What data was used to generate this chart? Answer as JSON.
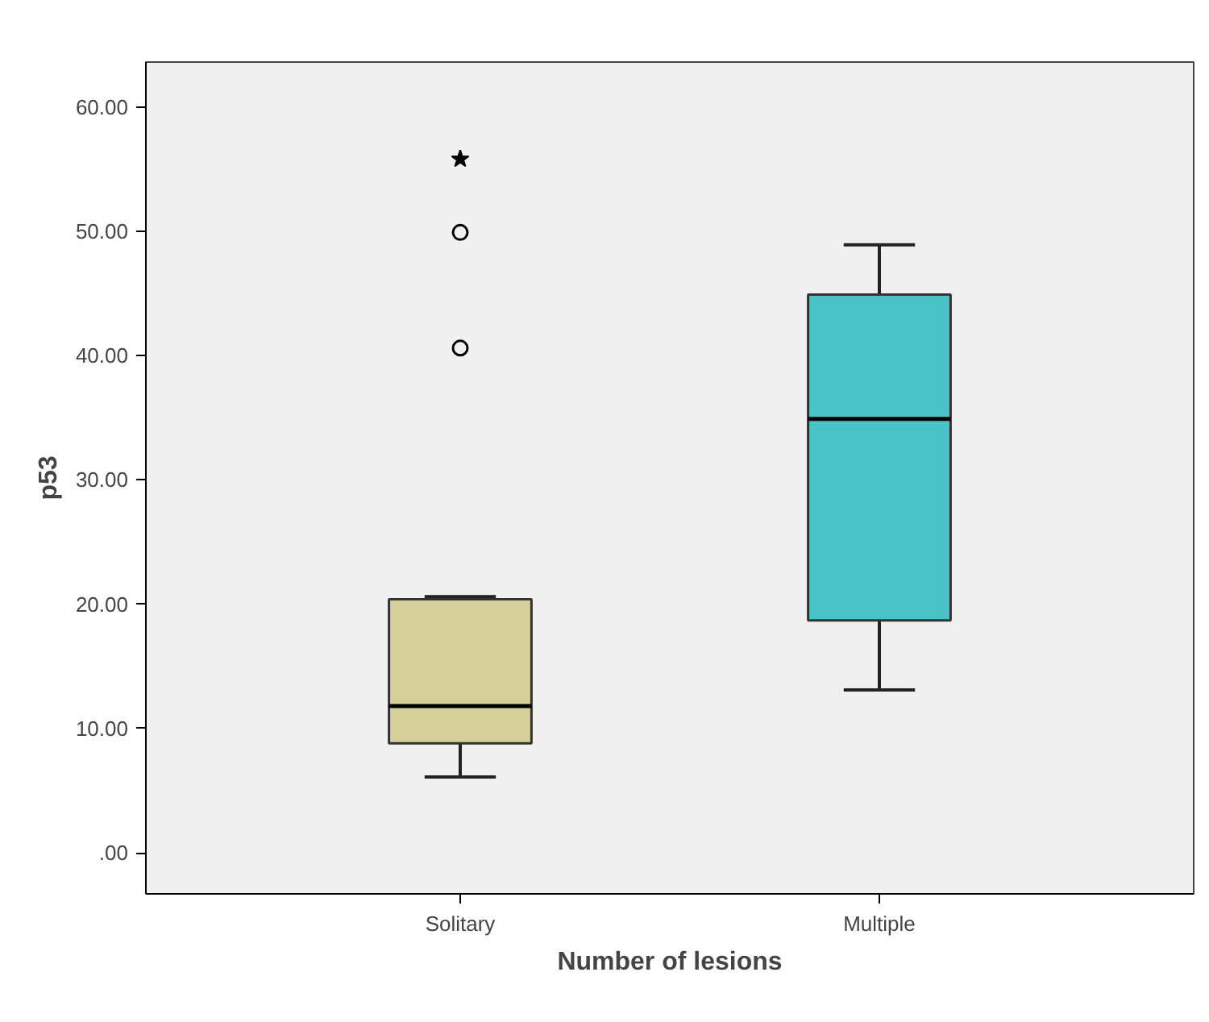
{
  "chart_data": {
    "type": "box",
    "xlabel": "Number of lesions",
    "ylabel": "p53",
    "categories": [
      "Solitary",
      "Multiple"
    ],
    "colors": [
      "#d5d09a",
      "#49c3c6"
    ],
    "boxes": [
      {
        "low": 6.1,
        "q1": 8.8,
        "median": 11.8,
        "q3": 20.4,
        "high": 20.6,
        "outliers": [
          40.6,
          49.9
        ]
      },
      {
        "low": 13.1,
        "q1": 18.7,
        "median": 34.9,
        "q3": 44.9,
        "high": 48.9
      }
    ],
    "series": [
      {
        "type": "scatter",
        "marker": "star",
        "color": "#000000",
        "x": [
          "Solitary"
        ],
        "values": [
          55.8
        ]
      }
    ],
    "ylim": [
      -3.3,
      63.6
    ],
    "yticks": [
      {
        "value": 0,
        "label": ".00"
      },
      {
        "value": 10,
        "label": "10.00"
      },
      {
        "value": 20,
        "label": "20.00"
      },
      {
        "value": 30,
        "label": "30.00"
      },
      {
        "value": 40,
        "label": "40.00"
      },
      {
        "value": 50,
        "label": "50.00"
      },
      {
        "value": 60,
        "label": "60.00"
      }
    ],
    "grid": false
  }
}
